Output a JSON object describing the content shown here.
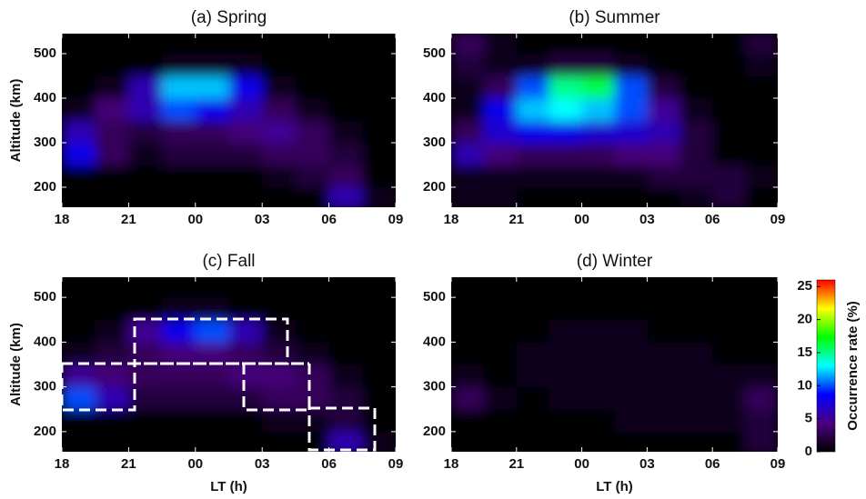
{
  "chart_data": [
    {
      "type": "heatmap",
      "title": "(a) Spring",
      "ylabel": "Altitude (km)",
      "xbins": [
        18,
        19.5,
        21,
        22.5,
        24,
        25.5,
        27,
        28.5,
        30,
        31.5,
        33
      ],
      "ybins": [
        150,
        200,
        250,
        300,
        350,
        400,
        450,
        500,
        550
      ],
      "z": [
        [
          0,
          0,
          0,
          0,
          0,
          0,
          0,
          0,
          6,
          1
        ],
        [
          0,
          0,
          0,
          0,
          0,
          0,
          1,
          2,
          3,
          0
        ],
        [
          8,
          3,
          1,
          2,
          2,
          2,
          3,
          3,
          2,
          0
        ],
        [
          6,
          3,
          2,
          3,
          3,
          4,
          5,
          3,
          1,
          0
        ],
        [
          1,
          4,
          6,
          10,
          8,
          6,
          3,
          1,
          0,
          0
        ],
        [
          0,
          1,
          6,
          12,
          12,
          8,
          1,
          0,
          0,
          0
        ],
        [
          0,
          0,
          0,
          1,
          1,
          1,
          0,
          0,
          0,
          0
        ],
        [
          0,
          0,
          0,
          0,
          0,
          0,
          0,
          0,
          0,
          0
        ]
      ],
      "xlim": [
        18,
        33
      ],
      "ylim": [
        155,
        545
      ],
      "xticks": [
        18,
        21,
        {
          "value": 24,
          "label": "00"
        },
        {
          "value": 27,
          "label": "03"
        },
        {
          "value": 30,
          "label": "06"
        },
        {
          "value": 33,
          "label": "09"
        }
      ],
      "yticks": [
        200,
        300,
        400,
        500
      ]
    },
    {
      "type": "heatmap",
      "title": "(b) Summer",
      "xbins": [
        18,
        19.5,
        21,
        22.5,
        24,
        25.5,
        27,
        28.5,
        30,
        31.5,
        33
      ],
      "ybins": [
        150,
        200,
        250,
        300,
        350,
        400,
        450,
        500,
        550
      ],
      "z": [
        [
          1,
          1,
          0,
          0,
          0,
          0,
          0,
          1,
          2,
          0
        ],
        [
          1,
          1,
          1,
          1,
          1,
          1,
          2,
          2,
          2,
          1
        ],
        [
          6,
          4,
          3,
          3,
          3,
          4,
          4,
          2,
          0,
          0
        ],
        [
          3,
          7,
          8,
          8,
          7,
          7,
          6,
          2,
          0,
          0
        ],
        [
          1,
          8,
          12,
          13,
          12,
          10,
          5,
          1,
          0,
          0
        ],
        [
          1,
          3,
          10,
          15,
          16,
          10,
          2,
          0,
          0,
          0
        ],
        [
          2,
          1,
          1,
          2,
          2,
          1,
          0,
          0,
          0,
          1
        ],
        [
          3,
          1,
          0,
          0,
          0,
          0,
          0,
          0,
          0,
          2
        ]
      ],
      "xlim": [
        18,
        33
      ],
      "ylim": [
        155,
        545
      ],
      "xticks": [
        18,
        21,
        {
          "value": 24,
          "label": "00"
        },
        {
          "value": 27,
          "label": "03"
        },
        {
          "value": 30,
          "label": "06"
        },
        {
          "value": 33,
          "label": "09"
        }
      ],
      "yticks": [
        200,
        300,
        400,
        500
      ]
    },
    {
      "type": "heatmap",
      "title": "(c) Fall",
      "ylabel": "Altitude (km)",
      "xlabel": "LT (h)",
      "xbins": [
        18,
        19.5,
        21,
        22.5,
        24,
        25.5,
        27,
        28.5,
        30,
        31.5,
        33
      ],
      "ybins": [
        150,
        200,
        250,
        300,
        350,
        400,
        450,
        500,
        550
      ],
      "z": [
        [
          0,
          0,
          0,
          0,
          0,
          0,
          0,
          0,
          6,
          1
        ],
        [
          0,
          0,
          0,
          0,
          0,
          0,
          1,
          1,
          2,
          0
        ],
        [
          10,
          6,
          2,
          2,
          2,
          2,
          3,
          3,
          2,
          0
        ],
        [
          5,
          4,
          3,
          3,
          3,
          4,
          4,
          3,
          1,
          0
        ],
        [
          1,
          2,
          3,
          4,
          4,
          3,
          2,
          1,
          0,
          0
        ],
        [
          0,
          1,
          5,
          8,
          10,
          6,
          1,
          0,
          0,
          0
        ],
        [
          0,
          0,
          0,
          1,
          1,
          0,
          0,
          0,
          0,
          0
        ],
        [
          0,
          0,
          0,
          0,
          0,
          0,
          0,
          0,
          0,
          0
        ]
      ],
      "xlim": [
        18,
        33
      ],
      "ylim": [
        155,
        545
      ],
      "xticks": [
        18,
        21,
        {
          "value": 24,
          "label": "00"
        },
        {
          "value": 27,
          "label": "03"
        },
        {
          "value": 30,
          "label": "06"
        },
        {
          "value": 33,
          "label": "09"
        }
      ],
      "yticks": [
        200,
        300,
        400,
        500
      ]
    },
    {
      "type": "heatmap",
      "title": "(d) Winter",
      "xlabel": "LT (h)",
      "xbins": [
        18,
        19.5,
        21,
        22.5,
        24,
        25.5,
        27,
        28.5,
        30,
        31.5,
        33
      ],
      "ybins": [
        150,
        200,
        250,
        300,
        350,
        400,
        450,
        500,
        550
      ],
      "z": [
        [
          0,
          0,
          0,
          0,
          0,
          0,
          0,
          0,
          0,
          2
        ],
        [
          0,
          0,
          0,
          0,
          0,
          1,
          1,
          1,
          1,
          2
        ],
        [
          3,
          1,
          0,
          1,
          1,
          1,
          1,
          1,
          1,
          3
        ],
        [
          1,
          0,
          1,
          1,
          1,
          1,
          1,
          1,
          1,
          1
        ],
        [
          0,
          0,
          1,
          1,
          1,
          1,
          1,
          1,
          0,
          0
        ],
        [
          0,
          0,
          0,
          1,
          1,
          1,
          0,
          0,
          0,
          0
        ],
        [
          0,
          0,
          0,
          0,
          0,
          0,
          0,
          0,
          0,
          0
        ],
        [
          0,
          0,
          0,
          0,
          0,
          0,
          0,
          0,
          0,
          0
        ]
      ],
      "xlim": [
        18,
        33
      ],
      "ylim": [
        155,
        545
      ],
      "xticks": [
        18,
        21,
        {
          "value": 24,
          "label": "00"
        },
        {
          "value": 27,
          "label": "03"
        },
        {
          "value": 30,
          "label": "06"
        },
        {
          "value": 33,
          "label": "09"
        }
      ],
      "yticks": [
        200,
        300,
        400,
        500
      ],
      "colorbar": {
        "label": "Occurrence rate (%)",
        "zlim": [
          0,
          26
        ],
        "ticks": [
          0,
          5,
          10,
          15,
          20,
          25
        ],
        "colormap": [
          "#000000",
          "#4b0082",
          "#0000ff",
          "#00ffff",
          "#00ff00",
          "#ffff00",
          "#ff0000"
        ]
      }
    }
  ]
}
